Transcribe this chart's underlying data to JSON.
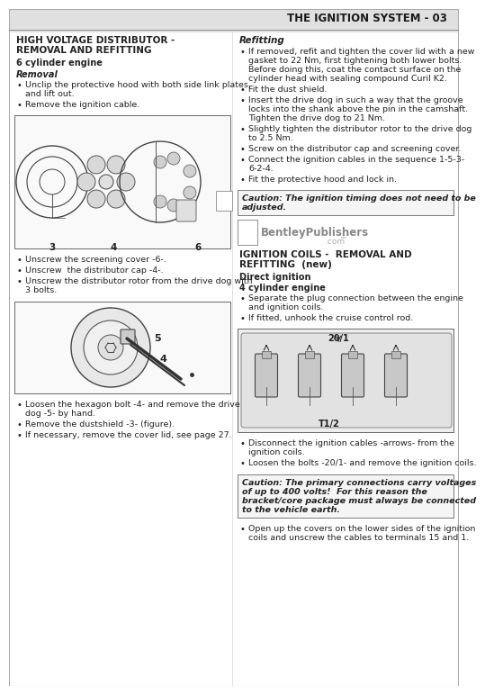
{
  "page_bg": "#ffffff",
  "header_text": "THE IGNITION SYSTEM - 03",
  "bullets_removal": [
    "Unclip the protective hood with both side link plates,\nand lift out.",
    "Remove the ignition cable."
  ],
  "bullets_after_img1": [
    "Unscrew the screening cover -6-.",
    "Unscrew  the distributor cap -4-.",
    "Unscrew the distributor rotor from the drive dog with\n3 bolts."
  ],
  "bullets_lower_left": [
    "Loosen the hexagon bolt -4- and remove the drive\ndog -5- by hand.",
    "Remove the dustshield -3- (figure).",
    "If necessary, remove the cover lid, see page 27."
  ],
  "bullets_refitting": [
    "If removed, refit and tighten the cover lid with a new\ngasket to 22 Nm, first tightening both lower bolts.\nBefore doing this, coat the contact surface on the\ncylinder head with sealing compound Curil K2.",
    "Fit the dust shield.",
    "Insert the drive dog in such a way that the groove\nlocks into the shank above the pin in the camshaft.\nTighten the drive dog to 21 Nm.",
    "Slightly tighten the distributor rotor to the drive dog\nto 2.5 Nm.",
    "Screw on the distributor cap and screening cover.",
    "Connect the ignition cables in the sequence 1-5-3-\n6-2-4.",
    "Fit the protective hood and lock in."
  ],
  "caution_box_text": "Caution: The ignition timing does not need to be\nadjusted.",
  "bullets_ignition": [
    "Separate the plug connection between the engine\nand ignition coils.",
    "If fitted, unhook the cruise control rod."
  ],
  "bullets_lower_right": [
    "Disconnect the ignition cables -arrows- from the\nignition coils.",
    "Loosen the bolts -20/1- and remove the ignition coils."
  ],
  "caution_box2_text": "Caution: The primary connections carry voltages\nof up to 400 volts!  For this reason the\nbracket/core package must always be connected\nto the vehicle earth.",
  "bullet_last": "Open up the covers on the lower sides of the ignition\ncoils and unscrew the cables to terminals 15 and 1."
}
